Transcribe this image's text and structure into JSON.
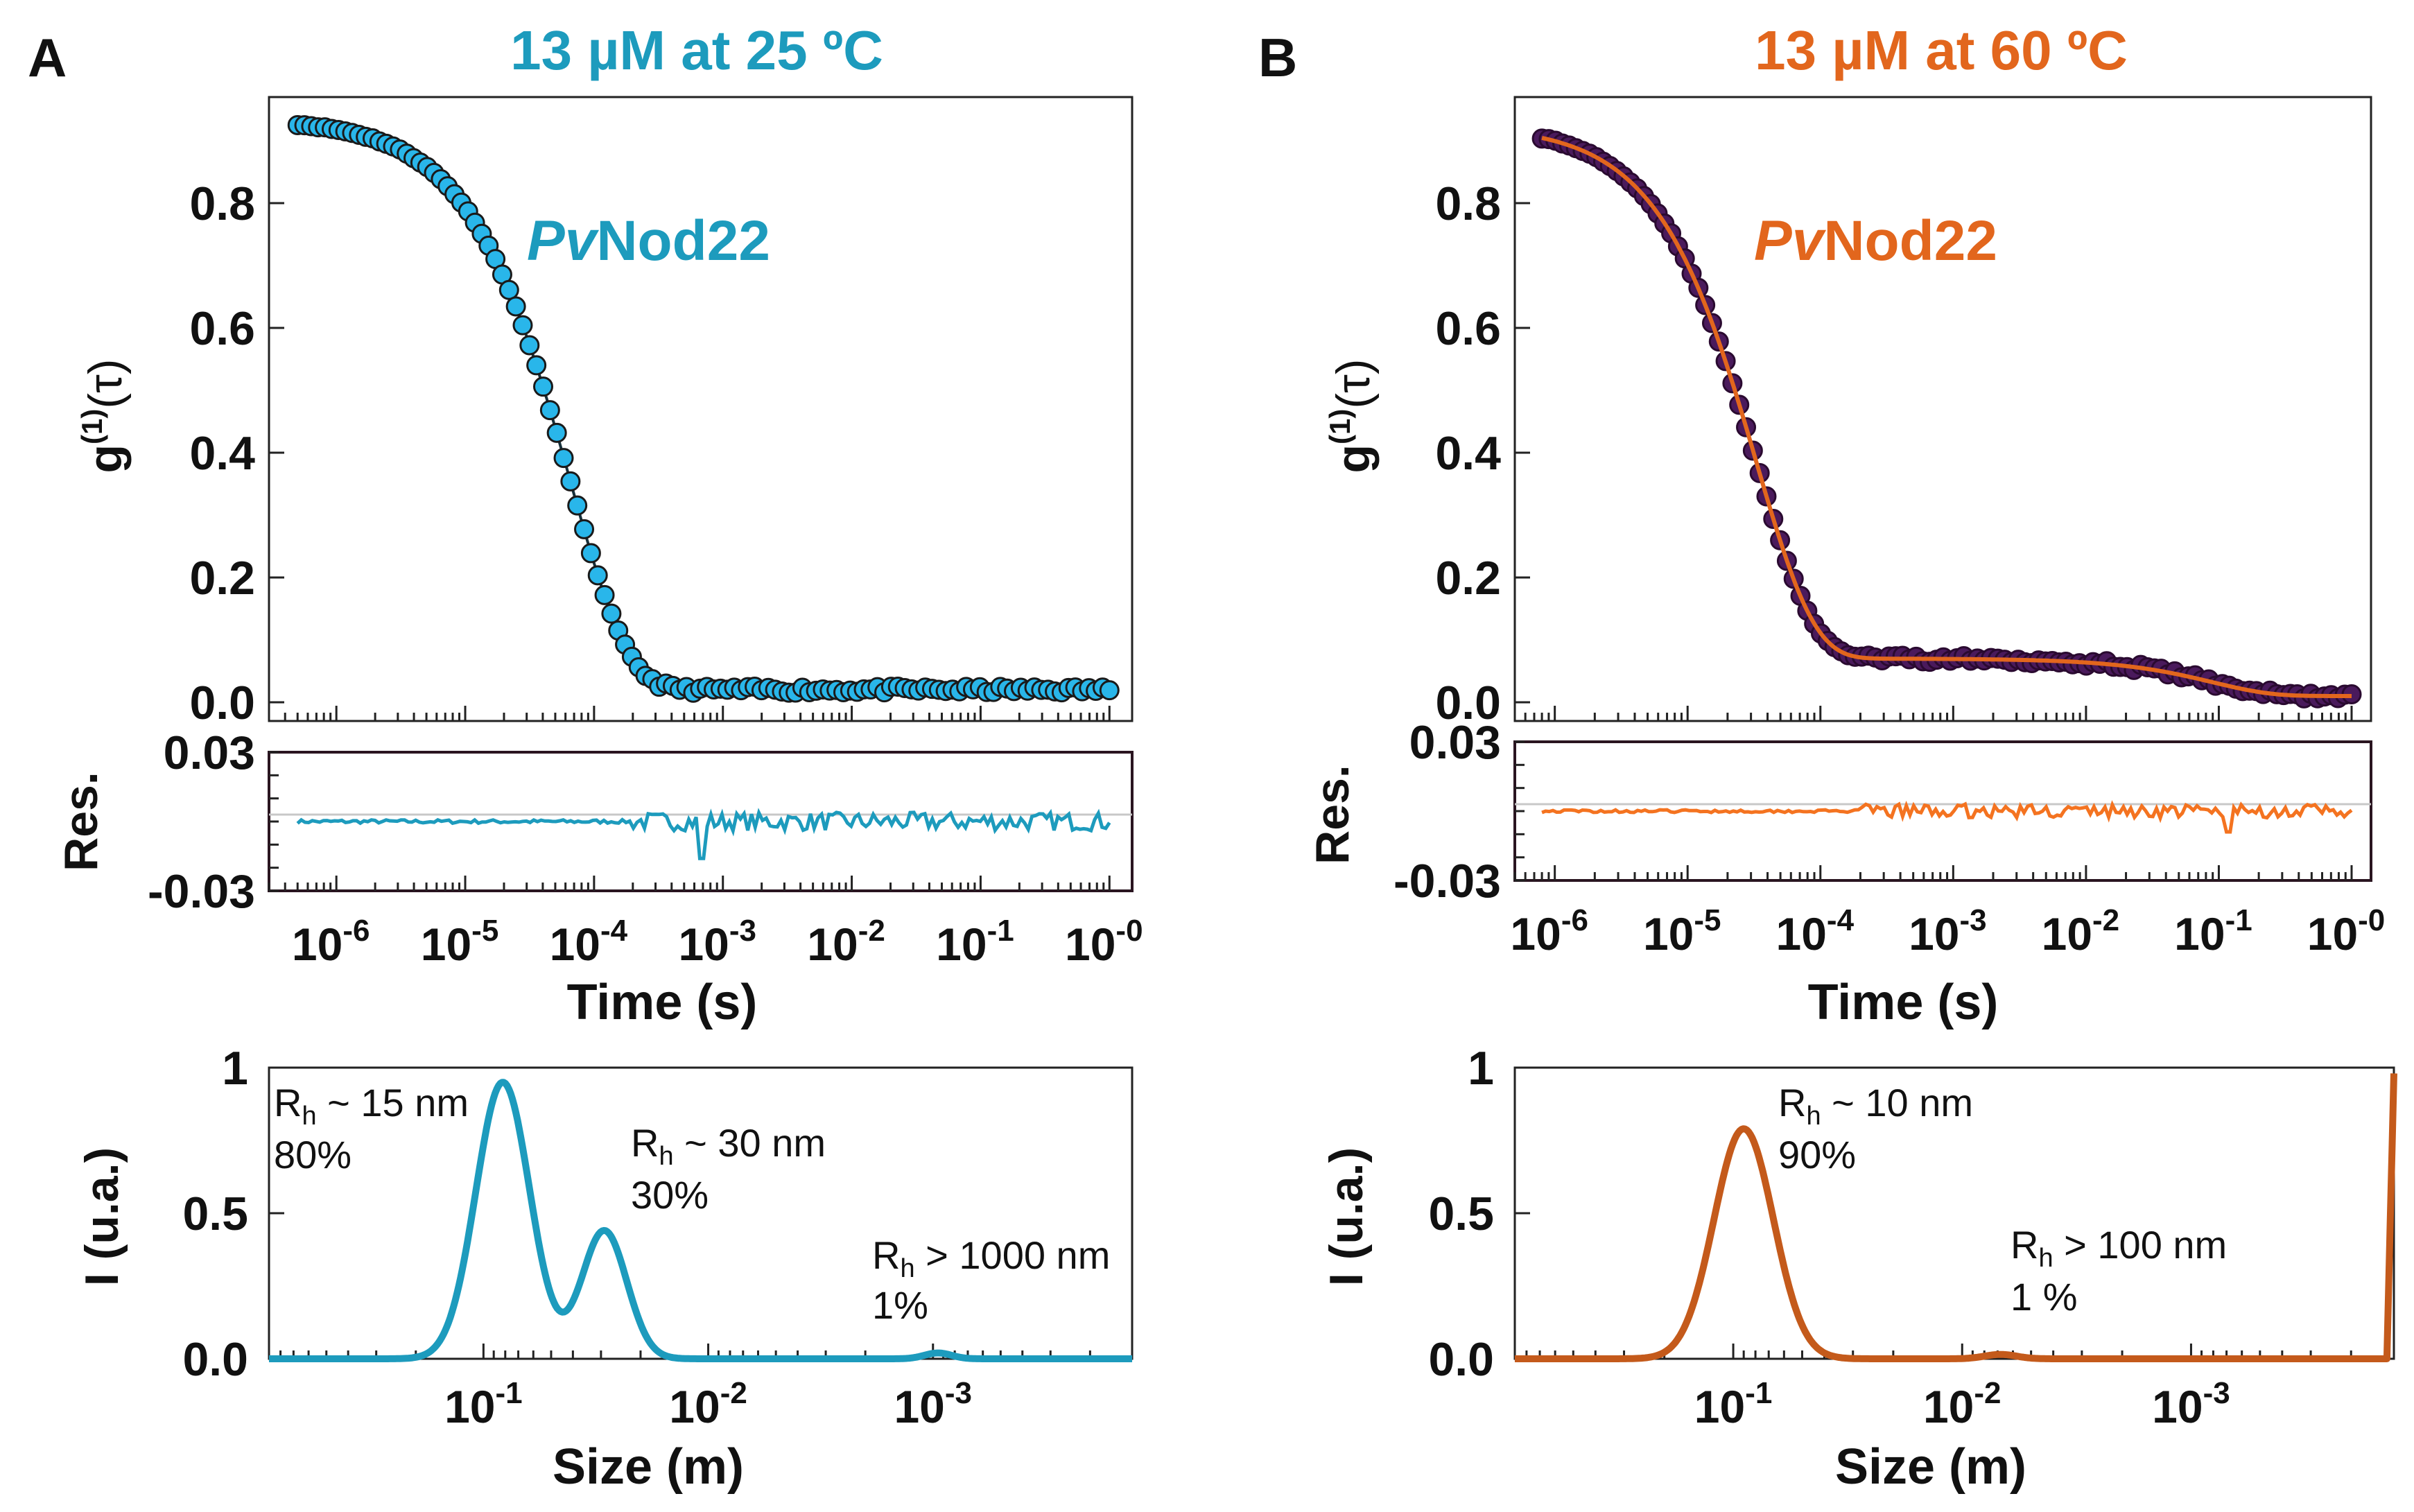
{
  "figure": {
    "panel_a": {
      "letter": "A",
      "title": "13 µM at 25 ºC",
      "accent": "#1d9bbd",
      "point_fill": "#29b6ea",
      "point_edge": "#1a1a1a",
      "label_species_italic": "Pv",
      "label_species_rest": "Nod22"
    },
    "panel_b": {
      "letter": "B",
      "title": "13 µM at 60 ºC",
      "accent": "#e2661d",
      "point_fill": "#4a1a5c",
      "point_edge": "#2a0a30",
      "residual_color": "#f47320",
      "size_color": "#c45a1b",
      "label_species_italic": "Pv",
      "label_species_rest": "Nod22"
    }
  },
  "chart_data": [
    {
      "id": "A-correlation",
      "type": "scatter",
      "title": "13 µM at 25 ºC",
      "xlabel": "Time (s)",
      "ylabel": "g(1)(τ)",
      "ylabel_base": "g",
      "ylabel_sup": "(1)",
      "ylabel_arg": "(τ)",
      "xscale": "log",
      "xlim": [
        3e-07,
        1.5
      ],
      "ylim": [
        -0.03,
        0.97
      ],
      "yticks": [
        0.0,
        0.2,
        0.4,
        0.6,
        0.8
      ],
      "ytick_labels": [
        "0.0",
        "0.2",
        "0.4",
        "0.6",
        "0.8"
      ],
      "annotation": "PvNod22",
      "series": [
        {
          "name": "PvNod22 25 °C",
          "fit": {
            "model": "single-exponential-decay",
            "tau_s": 6.5e-05,
            "beta": 0.95,
            "amplitude": 0.935,
            "baseline": 0.02
          },
          "points": {
            "x_start": 5e-07,
            "x_end": 1.0,
            "count": 120
          }
        }
      ]
    },
    {
      "id": "A-residuals",
      "type": "line",
      "xlabel": "Time (s)",
      "ylabel": "Res.",
      "xscale": "log",
      "xlim": [
        3e-07,
        1.5
      ],
      "ylim": [
        -0.03,
        0.03
      ],
      "yticks": [
        -0.03,
        0.03
      ],
      "ytick_labels": [
        "-0.03",
        "0.03"
      ],
      "xticks": [
        1e-06,
        1e-05,
        0.0001,
        0.001,
        0.01,
        0.1,
        1
      ],
      "xtick_base": [
        "10",
        "10",
        "10",
        "10",
        "10",
        "10",
        "10"
      ],
      "xtick_exp": [
        "-6",
        "-5",
        "-4",
        "-3",
        "-2",
        "-1",
        "-0"
      ],
      "noise": [
        {
          "from": 5e-07,
          "to": 0.0002,
          "amp": 0.0008
        },
        {
          "from": 0.0002,
          "to": 1.0,
          "amp": 0.004
        }
      ],
      "spike": {
        "x": 0.0007,
        "y": -0.016
      }
    },
    {
      "id": "A-size",
      "type": "line",
      "xlabel": "Size (m)",
      "ylabel": "I (u.a.)",
      "xscale": "log-reversed",
      "ylim": [
        0,
        1
      ],
      "yticks": [
        0.0,
        0.5,
        1
      ],
      "ytick_labels": [
        "0.0",
        "0.5",
        "1"
      ],
      "xticks": [
        0.1,
        0.01,
        0.001
      ],
      "xtick_base": [
        "10",
        "10",
        "10"
      ],
      "xtick_exp": [
        "-1",
        "-2",
        "-3"
      ],
      "peaks": [
        {
          "center": 0.082,
          "height": 0.95,
          "width_decades": 0.12,
          "label_rh": "R",
          "label_sub": "h",
          "label_rest": " ~ 15 nm",
          "label_pct": "80%"
        },
        {
          "center": 0.029,
          "height": 0.44,
          "width_decades": 0.1,
          "label_rh": "R",
          "label_sub": "h",
          "label_rest": " ~ 30 nm",
          "label_pct": "30%"
        },
        {
          "center": 0.00095,
          "height": 0.02,
          "width_decades": 0.06,
          "label_rh": "R",
          "label_sub": "h",
          "label_rest": " > 1000 nm",
          "label_pct": "1%"
        }
      ]
    },
    {
      "id": "B-correlation",
      "type": "scatter",
      "title": "13 µM at 60 ºC",
      "xlabel": "Time (s)",
      "ylabel": "g(1)(τ)",
      "ylabel_base": "g",
      "ylabel_sup": "(1)",
      "ylabel_arg": "(τ)",
      "xscale": "log",
      "xlim": [
        5e-07,
        1.4
      ],
      "ylim": [
        -0.03,
        0.97
      ],
      "yticks": [
        0.0,
        0.2,
        0.4,
        0.6,
        0.8
      ],
      "ytick_labels": [
        "0.0",
        "0.2",
        "0.4",
        "0.6",
        "0.8"
      ],
      "annotation": "PvNod22",
      "series": [
        {
          "name": "PvNod22 60 °C",
          "fit": {
            "model": "double-exponential-decay",
            "tau1_s": 3.3e-05,
            "amp1": 0.855,
            "tau2_s": 0.09,
            "amp2": 0.06,
            "baseline": 0.01
          },
          "points": {
            "x_start": 8e-07,
            "x_end": 1.0,
            "count": 120
          }
        }
      ]
    },
    {
      "id": "B-residuals",
      "type": "line",
      "xlabel": "Time (s)",
      "ylabel": "Res.",
      "xscale": "log",
      "xlim": [
        5e-07,
        1.4
      ],
      "ylim": [
        -0.03,
        0.03
      ],
      "yticks": [
        -0.03,
        0.03
      ],
      "ytick_labels": [
        "-0.03",
        "0.03"
      ],
      "xticks": [
        1e-06,
        1e-05,
        0.0001,
        0.001,
        0.01,
        0.1,
        1
      ],
      "xtick_base": [
        "10",
        "10",
        "10",
        "10",
        "10",
        "10",
        "10"
      ],
      "xtick_exp": [
        "-6",
        "-5",
        "-4",
        "-3",
        "-2",
        "-1",
        "-0"
      ],
      "noise": [
        {
          "from": 8e-07,
          "to": 0.0002,
          "amp": 0.0006
        },
        {
          "from": 0.0002,
          "to": 1.0,
          "amp": 0.003
        }
      ],
      "spike": {
        "x": 0.12,
        "y": -0.009
      }
    },
    {
      "id": "B-size",
      "type": "line",
      "xlabel": "Size (m)",
      "ylabel": "I (u.a.)",
      "xscale": "log-reversed",
      "ylim": [
        0,
        1
      ],
      "yticks": [
        0.0,
        0.5,
        1
      ],
      "ytick_labels": [
        "0.0",
        "0.5",
        "1"
      ],
      "xticks": [
        0.1,
        0.01,
        0.001
      ],
      "xtick_base": [
        "10",
        "10",
        "10"
      ],
      "xtick_exp": [
        "-1",
        "-2",
        "-3"
      ],
      "peaks": [
        {
          "center": 0.09,
          "height": 0.79,
          "width_decades": 0.13,
          "label_rh": "R",
          "label_sub": "h",
          "label_rest": " ~ 10 nm",
          "label_pct": "90%"
        },
        {
          "center": 0.0068,
          "height": 0.015,
          "width_decades": 0.07,
          "label_rh": "R",
          "label_sub": "h",
          "label_rest": " > 100 nm",
          "label_pct": "1 %"
        }
      ],
      "edge_spike": {
        "height": 0.98
      }
    }
  ]
}
